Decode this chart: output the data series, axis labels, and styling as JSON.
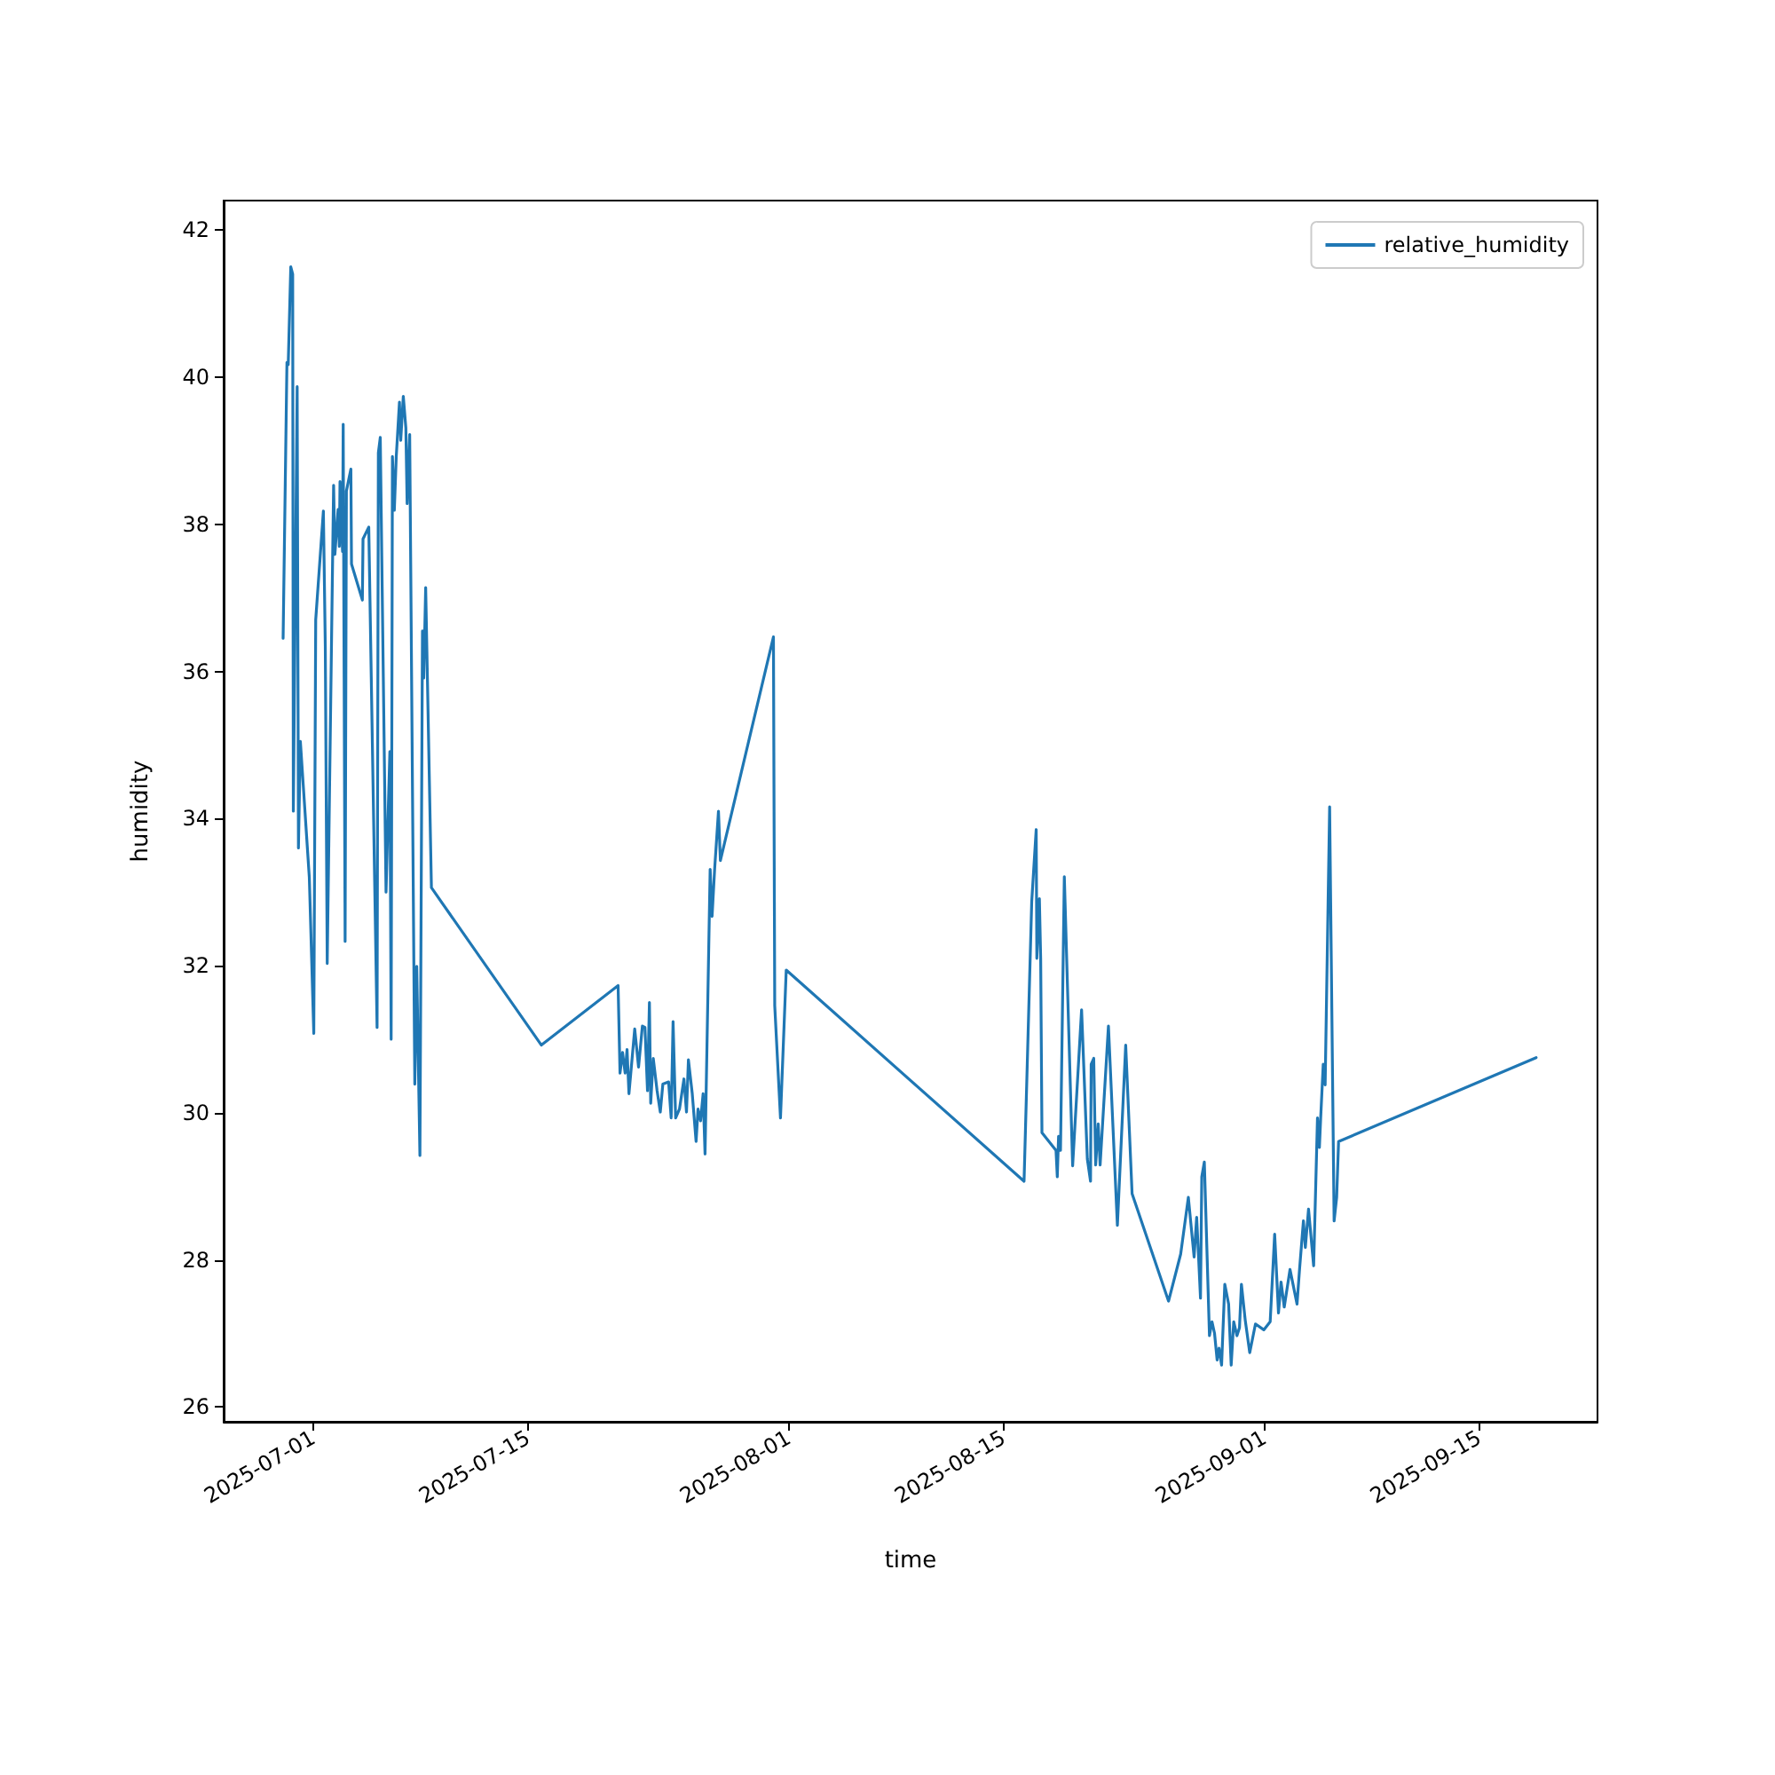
{
  "chart_data": {
    "type": "line",
    "xlabel": "time",
    "ylabel": "humidity",
    "legend": "top right",
    "grid": false,
    "xlim": [
      "2025-06-25T04:00",
      "2025-09-22T17:00"
    ],
    "xticks": [
      "2025-07-01",
      "2025-07-15",
      "2025-08-01",
      "2025-08-15",
      "2025-09-01",
      "2025-09-15"
    ],
    "ylim": [
      25.8,
      42.4
    ],
    "yticks": [
      26,
      28,
      30,
      32,
      34,
      36,
      38,
      40,
      42
    ],
    "series": [
      {
        "name": "relative_humidity",
        "color": "#1f77b4",
        "x": [
          "2025-06-29T01:00",
          "2025-06-29T07:00",
          "2025-06-29T09:00",
          "2025-06-29T13:00",
          "2025-06-29T16:00",
          "2025-06-29T17:00",
          "2025-06-29T23:00",
          "2025-06-30T01:00",
          "2025-06-30T04:00",
          "2025-06-30T18:00",
          "2025-07-01T01:00",
          "2025-07-01T04:00",
          "2025-07-01T16:00",
          "2025-07-01T19:00",
          "2025-07-01T22:00",
          "2025-07-02T08:00",
          "2025-07-02T10:00",
          "2025-07-02T15:00",
          "2025-07-02T17:00",
          "2025-07-02T18:00",
          "2025-07-02T22:00",
          "2025-07-02T23:00",
          "2025-07-03T02:00",
          "2025-07-03T04:00",
          "2025-07-03T11:00",
          "2025-07-03T12:00",
          "2025-07-04T05:00",
          "2025-07-04T06:00",
          "2025-07-04T15:00",
          "2025-07-05T04:00",
          "2025-07-05T06:00",
          "2025-07-05T09:00",
          "2025-07-05T18:00",
          "2025-07-06T00:00",
          "2025-07-06T02:00",
          "2025-07-06T04:00",
          "2025-07-06T07:00",
          "2025-07-06T10:00",
          "2025-07-06T15:00",
          "2025-07-06T17:00",
          "2025-07-06T21:00",
          "2025-07-07T01:00",
          "2025-07-07T03:00",
          "2025-07-07T07:00",
          "2025-07-07T15:00",
          "2025-07-07T18:00",
          "2025-07-07T23:00",
          "2025-07-08T03:00",
          "2025-07-08T05:00",
          "2025-07-08T08:00",
          "2025-07-08T17:00",
          "2025-07-15T21:00",
          "2025-07-20T21:00",
          "2025-07-21T00:00",
          "2025-07-21T04:00",
          "2025-07-21T08:00",
          "2025-07-21T11:00",
          "2025-07-21T14:00",
          "2025-07-21T23:00",
          "2025-07-22T05:00",
          "2025-07-22T11:00",
          "2025-07-22T15:00",
          "2025-07-22T19:00",
          "2025-07-22T22:00",
          "2025-07-23T00:00",
          "2025-07-23T04:00",
          "2025-07-23T10:00",
          "2025-07-23T15:00",
          "2025-07-23T19:00",
          "2025-07-24T04:00",
          "2025-07-24T08:00",
          "2025-07-24T11:00",
          "2025-07-24T15:00",
          "2025-07-24T21:00",
          "2025-07-25T04:00",
          "2025-07-25T08:00",
          "2025-07-25T11:00",
          "2025-07-25T17:00",
          "2025-07-25T23:00",
          "2025-07-26T02:00",
          "2025-07-26T06:00",
          "2025-07-26T10:00",
          "2025-07-26T13:00",
          "2025-07-26T21:00",
          "2025-07-27T00:00",
          "2025-07-27T04:00",
          "2025-07-27T10:00",
          "2025-07-27T13:00",
          "2025-07-31T00:00",
          "2025-07-31T02:00",
          "2025-07-31T11:00",
          "2025-07-31T20:00",
          "2025-08-16T08:00",
          "2025-08-16T20:00",
          "2025-08-17T03:00",
          "2025-08-17T04:00",
          "2025-08-17T08:00",
          "2025-08-17T10:00",
          "2025-08-17T12:00",
          "2025-08-18T10:00",
          "2025-08-18T12:00",
          "2025-08-18T14:00",
          "2025-08-18T17:00",
          "2025-08-18T23:00",
          "2025-08-19T12:00",
          "2025-08-20T02:00",
          "2025-08-20T11:00",
          "2025-08-20T16:00",
          "2025-08-20T17:00",
          "2025-08-20T21:00",
          "2025-08-21T00:00",
          "2025-08-21T04:00",
          "2025-08-21T07:00",
          "2025-08-21T20:00",
          "2025-08-22T10:00",
          "2025-08-22T23:00",
          "2025-08-23T09:00",
          "2025-08-25T18:00",
          "2025-08-26T13:00",
          "2025-08-27T01:00",
          "2025-08-27T10:00",
          "2025-08-27T14:00",
          "2025-08-27T17:00",
          "2025-08-27T20:00",
          "2025-08-27T22:00",
          "2025-08-28T02:00",
          "2025-08-28T10:00",
          "2025-08-28T14:00",
          "2025-08-28T18:00",
          "2025-08-28T22:00",
          "2025-08-29T01:00",
          "2025-08-29T05:00",
          "2025-08-29T10:00",
          "2025-08-29T16:00",
          "2025-08-29T20:00",
          "2025-08-30T00:00",
          "2025-08-30T05:00",
          "2025-08-30T09:00",
          "2025-08-30T12:00",
          "2025-08-30T18:00",
          "2025-08-31T01:00",
          "2025-08-31T10:00",
          "2025-08-31T23:00",
          "2025-09-01T09:00",
          "2025-09-01T16:00",
          "2025-09-01T22:00",
          "2025-09-02T02:00",
          "2025-09-02T07:00",
          "2025-09-02T16:00",
          "2025-09-03T03:00",
          "2025-09-03T07:00",
          "2025-09-03T13:00",
          "2025-09-03T16:00",
          "2025-09-03T21:00",
          "2025-09-04T05:00",
          "2025-09-04T11:00",
          "2025-09-04T14:00",
          "2025-09-04T16:00",
          "2025-09-04T20:00",
          "2025-09-04T23:00",
          "2025-09-05T06:00",
          "2025-09-05T13:00",
          "2025-09-05T17:00",
          "2025-09-05T20:00",
          "2025-09-18T17:00"
        ],
        "values": [
          36.45,
          40.2,
          40.17,
          41.5,
          41.4,
          34.1,
          39.87,
          33.6,
          35.05,
          33.2,
          31.08,
          36.7,
          38.18,
          36.34,
          32.03,
          38.53,
          37.59,
          38.2,
          37.7,
          38.58,
          37.63,
          39.36,
          32.33,
          38.45,
          38.75,
          37.46,
          36.97,
          37.8,
          37.96,
          31.16,
          38.97,
          39.18,
          33.0,
          34.91,
          31.0,
          38.92,
          38.19,
          38.92,
          39.66,
          39.14,
          39.74,
          39.31,
          38.28,
          39.22,
          30.39,
          31.99,
          29.42,
          36.55,
          35.91,
          37.14,
          33.06,
          30.92,
          31.73,
          30.54,
          30.82,
          30.54,
          30.86,
          30.26,
          31.14,
          30.62,
          31.18,
          31.16,
          30.3,
          31.5,
          30.13,
          30.74,
          30.3,
          30.01,
          30.39,
          30.42,
          29.93,
          31.24,
          29.93,
          30.05,
          30.46,
          30.01,
          30.72,
          30.26,
          29.61,
          30.05,
          29.89,
          30.26,
          29.44,
          33.31,
          32.67,
          33.31,
          34.1,
          33.43,
          36.47,
          31.46,
          29.93,
          31.94,
          29.07,
          32.87,
          33.85,
          32.1,
          32.91,
          32.1,
          29.73,
          29.49,
          29.13,
          29.68,
          29.49,
          33.21,
          29.28,
          31.4,
          29.37,
          29.07,
          30.66,
          30.74,
          29.29,
          29.85,
          29.29,
          31.18,
          28.47,
          30.92,
          28.9,
          27.44,
          28.08,
          28.85,
          28.04,
          28.58,
          28.04,
          27.48,
          29.13,
          29.33,
          26.97,
          27.16,
          27.0,
          26.64,
          26.8,
          26.57,
          27.67,
          27.4,
          26.57,
          27.16,
          26.97,
          27.08,
          27.67,
          27.18,
          26.74,
          27.13,
          27.05,
          27.16,
          28.35,
          27.28,
          27.7,
          27.36,
          27.87,
          27.4,
          27.88,
          28.53,
          28.17,
          28.69,
          27.92,
          29.93,
          29.53,
          29.93,
          30.66,
          30.38,
          34.16,
          28.53,
          28.85,
          29.61,
          30.75
        ]
      }
    ]
  }
}
